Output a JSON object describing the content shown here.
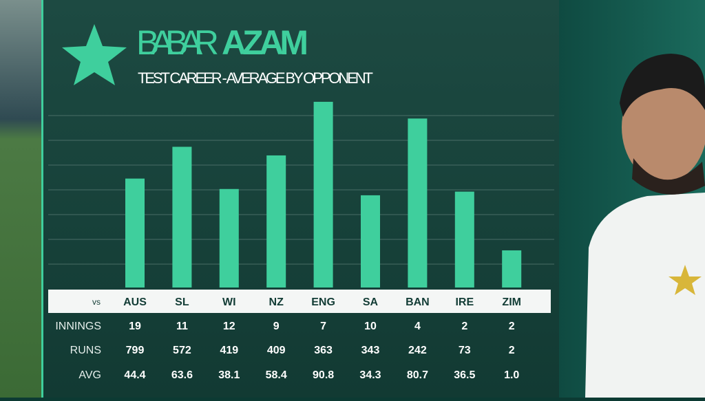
{
  "chart_data": {
    "type": "bar",
    "title": [
      "BABAR",
      "AZAM"
    ],
    "subtitle": "TEST CAREER - AVERAGE BY OPPONENT",
    "row_header": "vs",
    "categories": [
      "AUS",
      "SL",
      "WI",
      "NZ",
      "ENG",
      "SA",
      "BAN",
      "IRE",
      "ZIM"
    ],
    "rows": [
      {
        "name": "INNINGS",
        "values": [
          19,
          11,
          12,
          9,
          7,
          10,
          4,
          2,
          2
        ]
      },
      {
        "name": "RUNS",
        "values": [
          799,
          572,
          419,
          409,
          363,
          343,
          242,
          73,
          2
        ]
      }
    ],
    "series": [
      {
        "name": "AVG",
        "color": "#3fcf9d",
        "values": [
          44.4,
          63.6,
          38.1,
          58.4,
          90.8,
          34.3,
          80.7,
          36.5,
          1.0
        ],
        "value_labels": [
          "44.4",
          "63.6",
          "38.1",
          "58.4",
          "90.8",
          "34.3",
          "80.7",
          "36.5",
          "1.0"
        ]
      }
    ]
  }
}
